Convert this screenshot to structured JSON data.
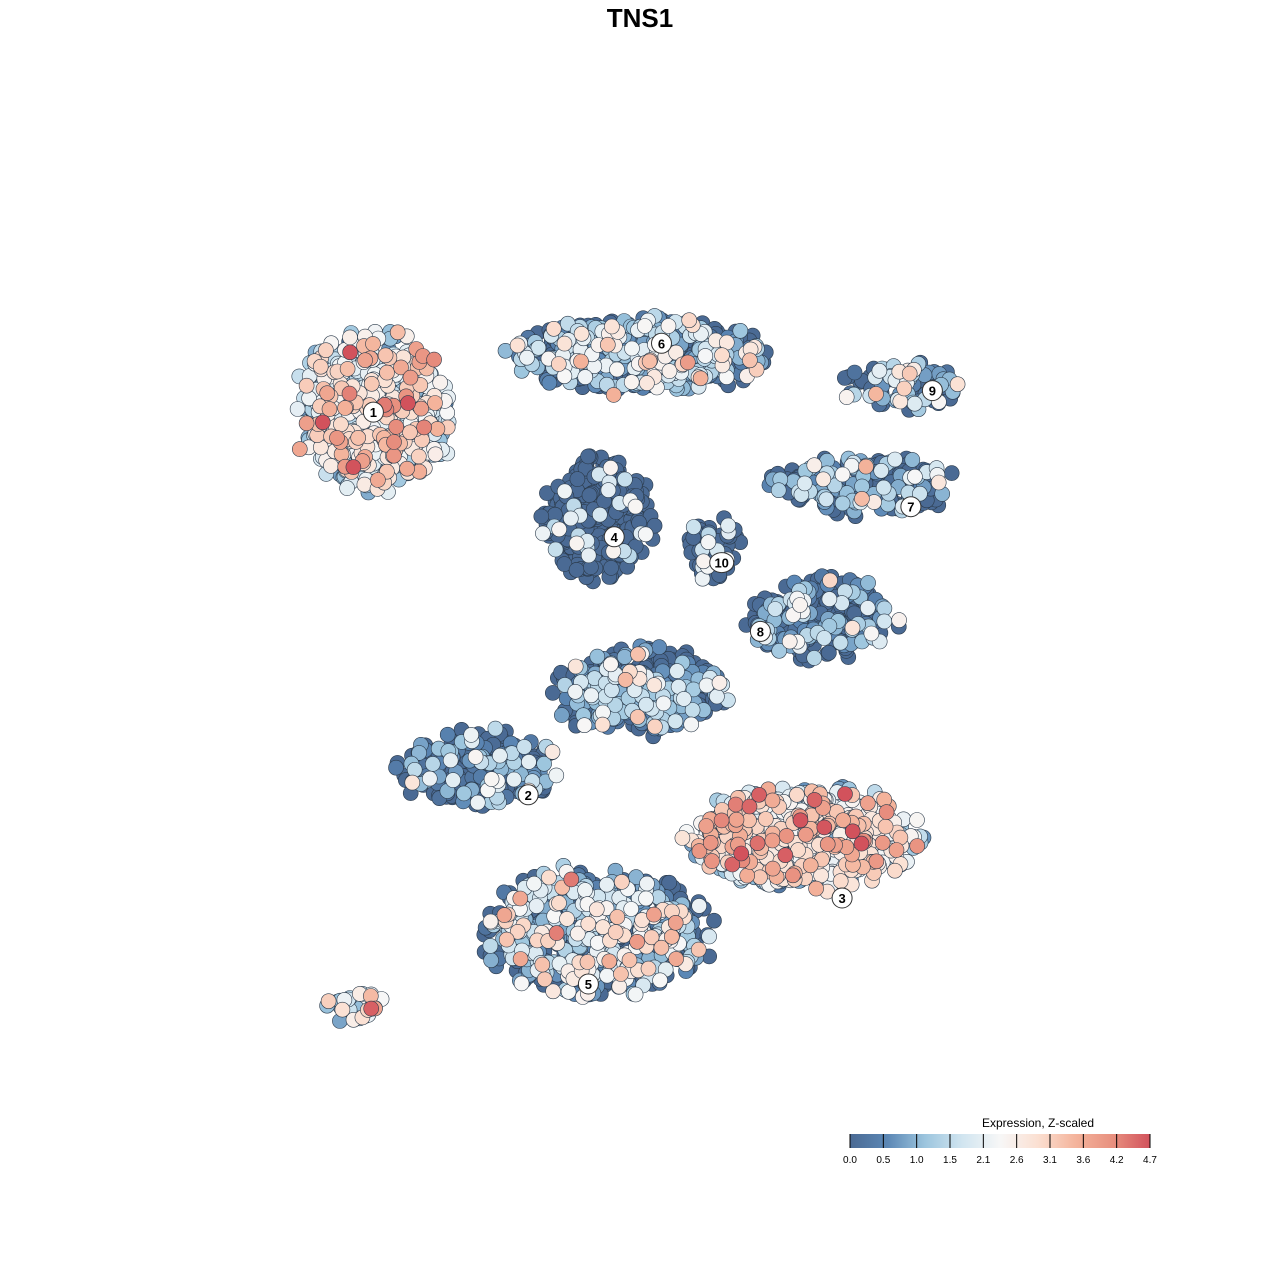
{
  "chart_data": {
    "type": "scatter",
    "title": "TNS1",
    "xlabel": "",
    "ylabel": "",
    "grid": false,
    "axes_visible": false,
    "legend": {
      "title": "Expression, Z-scaled",
      "placement": "bottom-right",
      "range": [
        0.0,
        4.7
      ],
      "ticks": [
        "0.0",
        "0.5",
        "1.0",
        "1.5",
        "2.1",
        "2.6",
        "3.1",
        "3.6",
        "4.2",
        "4.7"
      ],
      "colors": [
        "#4a6a94",
        "#5b87b5",
        "#9cc5de",
        "#d1e5f0",
        "#f7f7f7",
        "#fbe0d2",
        "#f4b49c",
        "#e8907f",
        "#d2525c"
      ]
    },
    "clusters": [
      {
        "label": "1",
        "cx": -0.62,
        "cy": 0.53,
        "rx": 0.18,
        "ry": 0.19,
        "n": 620,
        "mean_expr": 1.9
      },
      {
        "label": "6",
        "cx": 0.0,
        "cy": 0.66,
        "rx": 0.29,
        "ry": 0.09,
        "n": 560,
        "mean_expr": 1.1
      },
      {
        "label": "4",
        "cx": -0.1,
        "cy": 0.28,
        "rx": 0.13,
        "ry": 0.14,
        "n": 380,
        "mean_expr": 0.15
      },
      {
        "label": "10",
        "cx": 0.17,
        "cy": 0.22,
        "rx": 0.06,
        "ry": 0.08,
        "n": 70,
        "mean_expr": 0.2
      },
      {
        "label": "9",
        "cx": 0.61,
        "cy": 0.59,
        "rx": 0.14,
        "ry": 0.06,
        "n": 90,
        "mean_expr": 0.9
      },
      {
        "label": "7",
        "cx": 0.52,
        "cy": 0.36,
        "rx": 0.22,
        "ry": 0.07,
        "n": 200,
        "mean_expr": 0.8
      },
      {
        "label": "8",
        "cx": 0.42,
        "cy": 0.05,
        "rx": 0.17,
        "ry": 0.1,
        "n": 240,
        "mean_expr": 0.6
      },
      {
        "label": "2",
        "cx": -0.38,
        "cy": -0.3,
        "rx": 0.19,
        "ry": 0.09,
        "n": 280,
        "mean_expr": 0.3
      },
      {
        "label": "3",
        "cx": 0.38,
        "cy": -0.46,
        "rx": 0.27,
        "ry": 0.12,
        "n": 700,
        "mean_expr": 2.2
      },
      {
        "label": "5",
        "cx": -0.1,
        "cy": -0.68,
        "rx": 0.27,
        "ry": 0.15,
        "n": 700,
        "mean_expr": 1.4
      },
      {
        "label": "",
        "cx": 0.0,
        "cy": -0.12,
        "rx": 0.2,
        "ry": 0.1,
        "n": 420,
        "mean_expr": 0.6
      },
      {
        "label": "",
        "cx": -0.66,
        "cy": -0.85,
        "rx": 0.07,
        "ry": 0.04,
        "n": 30,
        "mean_expr": 2.0
      }
    ],
    "label_positions": [
      {
        "label": "1",
        "x": -0.62,
        "y": 0.53
      },
      {
        "label": "6",
        "x": 0.05,
        "y": 0.69
      },
      {
        "label": "4",
        "x": -0.06,
        "y": 0.24
      },
      {
        "label": "10",
        "x": 0.19,
        "y": 0.18
      },
      {
        "label": "9",
        "x": 0.68,
        "y": 0.58
      },
      {
        "label": "7",
        "x": 0.63,
        "y": 0.31
      },
      {
        "label": "8",
        "x": 0.28,
        "y": 0.02
      },
      {
        "label": "2",
        "x": -0.26,
        "y": -0.36
      },
      {
        "label": "3",
        "x": 0.47,
        "y": -0.6
      },
      {
        "label": "5",
        "x": -0.12,
        "y": -0.8
      }
    ]
  }
}
